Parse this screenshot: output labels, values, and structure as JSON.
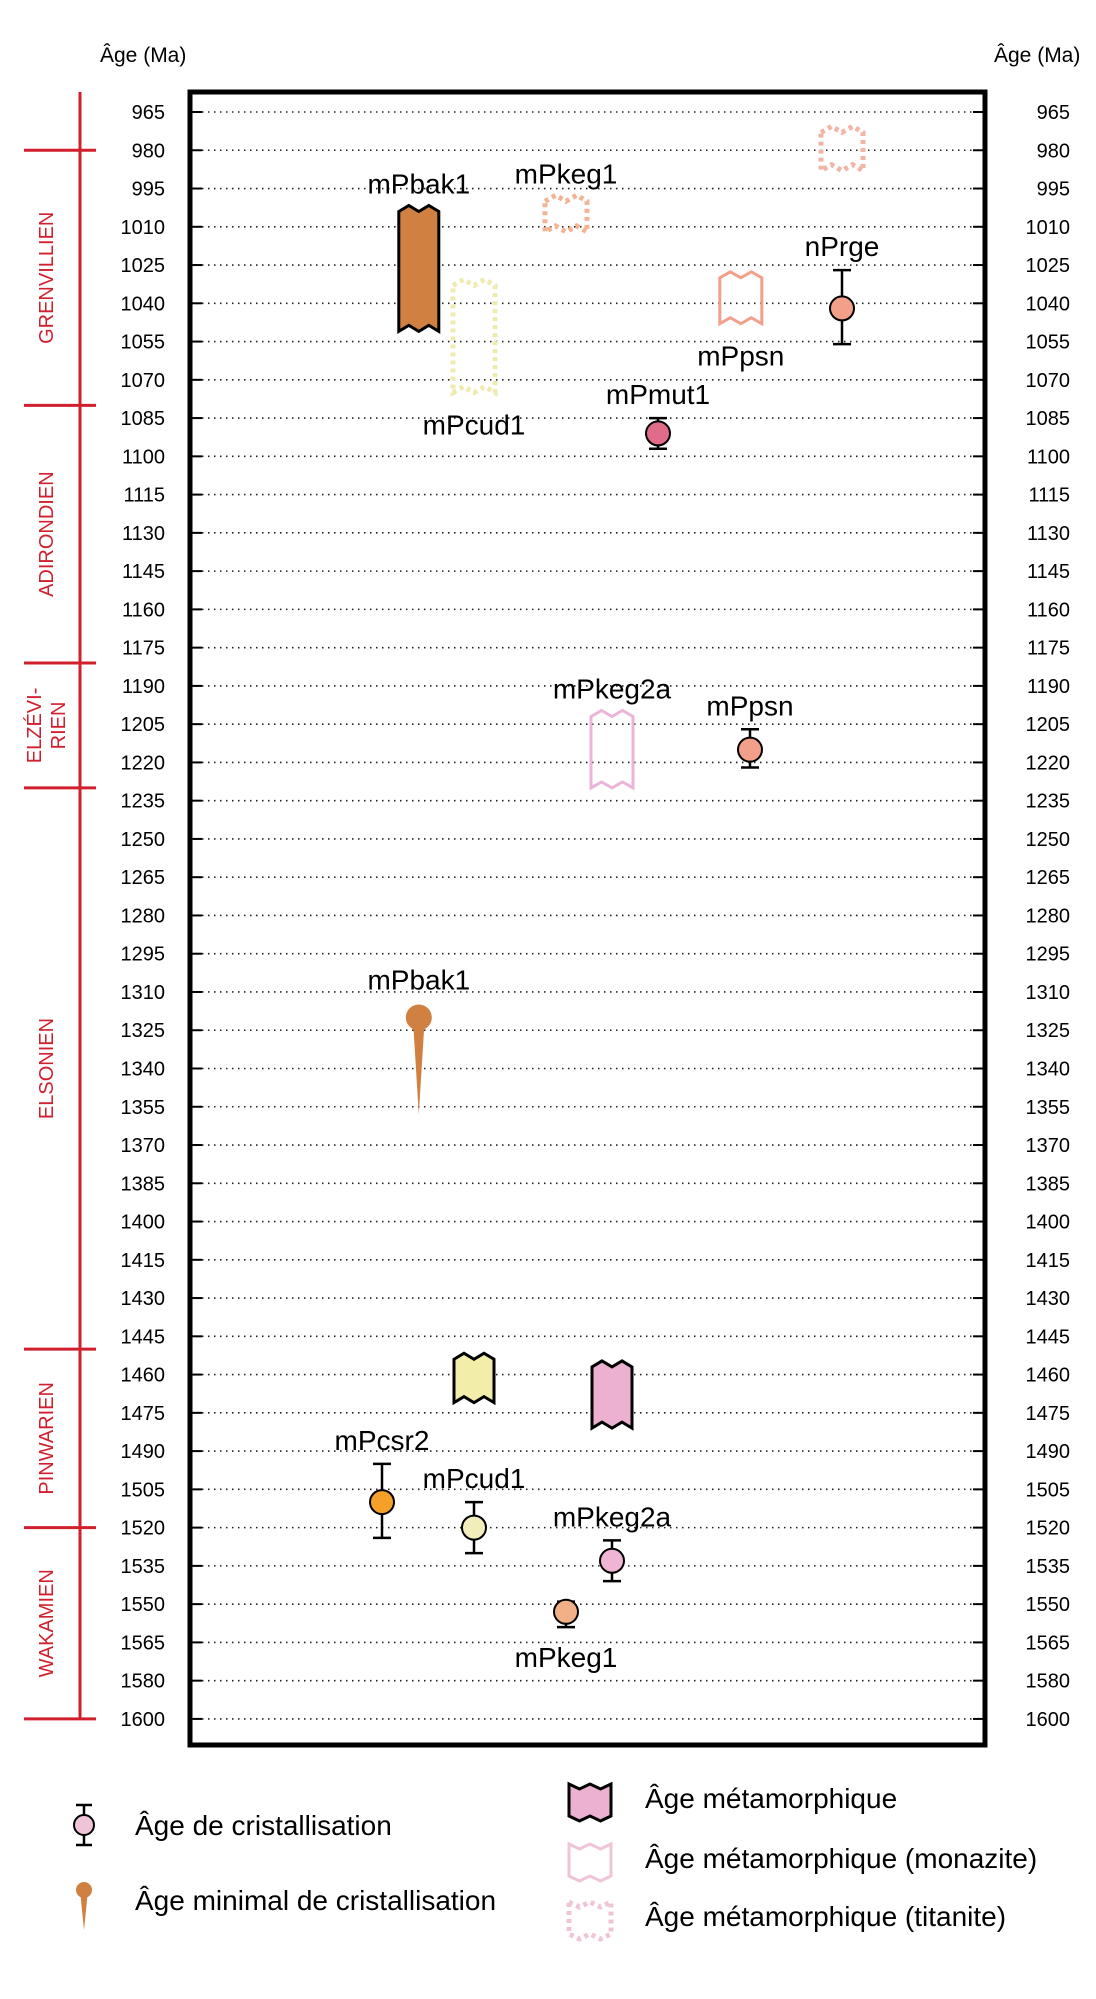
{
  "chart_data": {
    "type": "scatter",
    "ylabel_left": "Âge (Ma)",
    "ylabel_right": "Âge (Ma)",
    "y_axis": {
      "ylim": [
        965,
        1600
      ],
      "reversed": true,
      "ticks": [
        965,
        980,
        995,
        1010,
        1025,
        1040,
        1055,
        1070,
        1085,
        1100,
        1115,
        1130,
        1145,
        1160,
        1175,
        1190,
        1205,
        1220,
        1235,
        1250,
        1265,
        1280,
        1295,
        1310,
        1325,
        1340,
        1355,
        1370,
        1385,
        1400,
        1415,
        1430,
        1445,
        1460,
        1475,
        1490,
        1505,
        1520,
        1535,
        1550,
        1565,
        1580,
        1600
      ]
    },
    "grid": "dotted horizontal",
    "orogenies": [
      {
        "label": "GRENVILLIEN",
        "from": 965,
        "to": 1080
      },
      {
        "label": "ADIRONDIEN",
        "from": 1080,
        "to": 1181
      },
      {
        "label": "ELZÉVI-\nRIEN",
        "from": 1181,
        "to": 1230
      },
      {
        "label": "ELSONIEN",
        "from": 1230,
        "to": 1450
      },
      {
        "label": "PINWARIEN",
        "from": 1450,
        "to": 1520
      },
      {
        "label": "WAKAMIEN",
        "from": 1520,
        "to": 1600
      }
    ],
    "series": [
      {
        "name": "Âge de cristallisation",
        "kind": "point",
        "points": [
          {
            "sample": "nPrge",
            "column": 6,
            "age": 1042,
            "min": 1027,
            "max": 1056,
            "color": "#f2a08a",
            "label_pos": "above"
          },
          {
            "sample": "mPmut1",
            "column": 4,
            "age": 1091,
            "min": 1085,
            "max": 1097,
            "color": "#e06c8a",
            "label_pos": "above"
          },
          {
            "sample": "mPpsn",
            "column": 5,
            "age": 1215,
            "min": 1207,
            "max": 1222,
            "color": "#f2a08a",
            "label_pos": "above"
          },
          {
            "sample": "mPcsr2",
            "column": 1,
            "age": 1510,
            "min": 1495,
            "max": 1524,
            "color": "#f5a028",
            "label_pos": "above"
          },
          {
            "sample": "mPcud1",
            "column": 2,
            "age": 1520,
            "min": 1510,
            "max": 1530,
            "color": "#f2eebc",
            "label_pos": "above"
          },
          {
            "sample": "mPkeg2a",
            "column": 3.5,
            "age": 1533,
            "min": 1525,
            "max": 1541,
            "color": "#f0b4d4",
            "label_pos": "above"
          },
          {
            "sample": "mPkeg1",
            "column": 3,
            "age": 1553,
            "min": 1549,
            "max": 1559,
            "color": "#f2b088",
            "label_pos": "below"
          }
        ]
      },
      {
        "name": "Âge minimal de cristallisation",
        "kind": "min",
        "points": [
          {
            "sample": "mPbak1",
            "column": 1.4,
            "age": 1320,
            "tail_to": 1358,
            "color": "#d08040",
            "label_pos": "above"
          }
        ]
      },
      {
        "name": "Âge métamorphique",
        "kind": "box",
        "points": [
          {
            "sample": "mPbak1",
            "column": 1.4,
            "from": 1004,
            "to": 1051,
            "color": "#d08040",
            "label_pos": "above"
          },
          {
            "sample": "",
            "column": 2,
            "from": 1454,
            "to": 1471,
            "color": "#f2eeaa",
            "label_pos": "none"
          },
          {
            "sample": "",
            "column": 3.5,
            "from": 1457,
            "to": 1481,
            "color": "#ecb0d0",
            "label_pos": "none"
          }
        ]
      },
      {
        "name": "Âge métamorphique (monazite)",
        "kind": "box-outline",
        "points": [
          {
            "sample": "mPpsn",
            "column": 4.9,
            "from": 1030,
            "to": 1048,
            "color": "#f2a08a",
            "label_pos": "below"
          },
          {
            "sample": "mPkeg2a",
            "column": 3.5,
            "from": 1202,
            "to": 1230,
            "color": "#ecb4d8",
            "label_pos": "above"
          }
        ]
      },
      {
        "name": "Âge métamorphique (titanite)",
        "kind": "box-dotted",
        "points": [
          {
            "sample": "mPkeg1",
            "column": 3,
            "from": 1000,
            "to": 1012,
            "color": "#f2b494",
            "label_pos": "above"
          },
          {
            "sample": "mPcud1",
            "column": 2,
            "from": 1033,
            "to": 1075,
            "color": "#eeeab0",
            "label_pos": "below"
          },
          {
            "sample": "",
            "column": 6,
            "from": 973,
            "to": 988,
            "color": "#f2b4a4",
            "label_pos": "none"
          }
        ]
      }
    ],
    "legend": [
      {
        "label": "Âge de cristallisation",
        "kind": "point",
        "color": "#f0c4d8"
      },
      {
        "label": "Âge minimal de cristallisation",
        "kind": "min",
        "color": "#d08040"
      },
      {
        "label": "Âge métamorphique",
        "kind": "box",
        "color": "#ecb0d0"
      },
      {
        "label": "Âge métamorphique (monazite)",
        "kind": "box-outline",
        "color": "#f0c4d8"
      },
      {
        "label": "Âge métamorphique (titanite)",
        "kind": "box-dotted",
        "color": "#f0c4d8"
      }
    ]
  }
}
